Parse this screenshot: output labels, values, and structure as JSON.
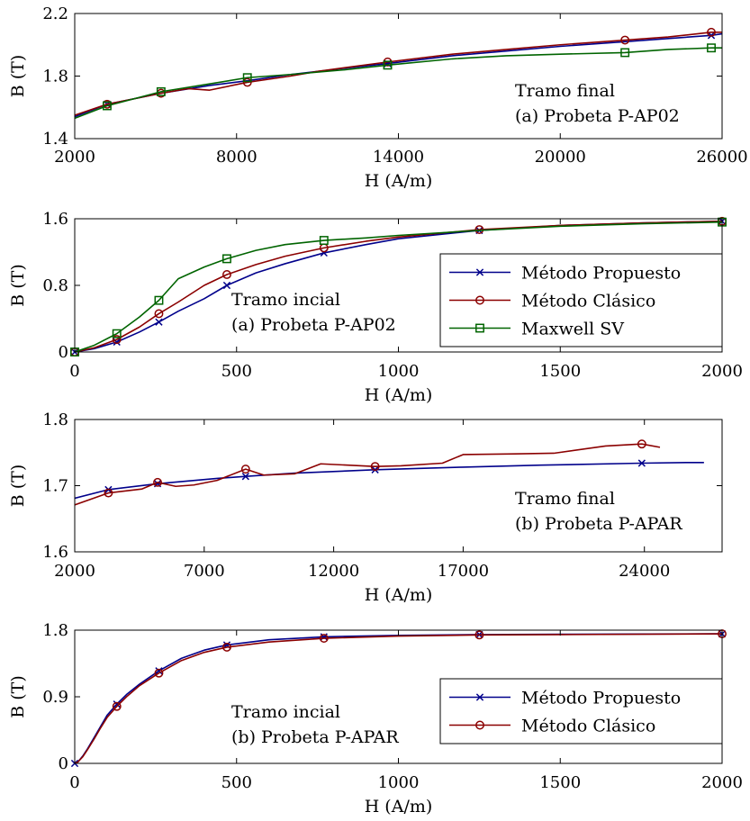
{
  "colors": {
    "propuesto": "#00008b",
    "clasico": "#8b0000",
    "maxwell": "#006400",
    "axis": "#000000"
  },
  "chart_data": [
    {
      "type": "line",
      "xlabel": "H (A/m)",
      "ylabel": "B (T)",
      "xlim": [
        2000,
        26000
      ],
      "ylim": [
        1.4,
        2.2
      ],
      "xticks": [
        2000,
        8000,
        14000,
        20000,
        26000
      ],
      "yticks": [
        1.4,
        1.8,
        2.2
      ],
      "ytick_labels": [
        "1.4",
        "1.8",
        "2.2"
      ],
      "annotation": [
        "Tramo final",
        "(a) Probeta P-AP02"
      ],
      "annotation_position": "middle-right",
      "legend": null,
      "series": [
        {
          "key": "propuesto",
          "marker": "x",
          "x": [
            2000,
            3200,
            5200,
            7000,
            8400,
            10000,
            12000,
            13600,
            16000,
            18000,
            20000,
            22400,
            24000,
            25600,
            26000
          ],
          "y": [
            1.54,
            1.62,
            1.69,
            1.74,
            1.77,
            1.81,
            1.85,
            1.88,
            1.93,
            1.96,
            1.99,
            2.02,
            2.04,
            2.06,
            2.07
          ],
          "markers_x": [
            3200,
            13600,
            25600
          ]
        },
        {
          "key": "clasico",
          "marker": "o",
          "x": [
            2000,
            3200,
            5200,
            6200,
            7000,
            8400,
            10000,
            11000,
            13600,
            16000,
            18000,
            20000,
            22400,
            24000,
            25600,
            26000
          ],
          "y": [
            1.55,
            1.62,
            1.69,
            1.72,
            1.71,
            1.76,
            1.8,
            1.83,
            1.89,
            1.94,
            1.97,
            2.0,
            2.03,
            2.05,
            2.08,
            2.08
          ],
          "markers_x": [
            3200,
            5200,
            8400,
            13600,
            22400,
            25600
          ]
        },
        {
          "key": "maxwell",
          "marker": "s",
          "x": [
            2000,
            3200,
            5200,
            7000,
            8400,
            10000,
            12000,
            13600,
            16000,
            18000,
            20000,
            22400,
            24000,
            25600,
            26000
          ],
          "y": [
            1.53,
            1.61,
            1.7,
            1.75,
            1.79,
            1.81,
            1.84,
            1.87,
            1.91,
            1.93,
            1.94,
            1.95,
            1.97,
            1.98,
            1.98
          ],
          "markers_x": [
            3200,
            5200,
            8400,
            13600,
            22400,
            25600
          ]
        }
      ]
    },
    {
      "type": "line",
      "xlabel": "H (A/m)",
      "ylabel": "B (T)",
      "xlim": [
        0,
        2000
      ],
      "ylim": [
        0,
        1.6
      ],
      "xticks": [
        0,
        500,
        1000,
        1500,
        2000
      ],
      "yticks": [
        0,
        0.8,
        1.6
      ],
      "ytick_labels": [
        "0",
        "0.8",
        "1.6"
      ],
      "annotation": [
        "Tramo incial",
        "(a) Probeta P-AP02"
      ],
      "annotation_position": "middle",
      "legend": {
        "position": "bottom-right",
        "entries": [
          {
            "key": "propuesto",
            "label": "Método Propuesto"
          },
          {
            "key": "clasico",
            "label": "Método Clásico"
          },
          {
            "key": "maxwell",
            "label": "Maxwell SV"
          }
        ]
      },
      "series": [
        {
          "key": "propuesto",
          "marker": "x",
          "x": [
            0,
            60,
            130,
            200,
            260,
            320,
            400,
            470,
            560,
            650,
            770,
            900,
            1000,
            1250,
            1500,
            1750,
            2000
          ],
          "y": [
            0,
            0.04,
            0.12,
            0.24,
            0.36,
            0.49,
            0.64,
            0.8,
            0.95,
            1.06,
            1.19,
            1.29,
            1.36,
            1.46,
            1.52,
            1.55,
            1.57
          ],
          "markers_x": [
            0,
            130,
            260,
            470,
            770,
            1250,
            2000
          ]
        },
        {
          "key": "clasico",
          "marker": "o",
          "x": [
            0,
            60,
            130,
            200,
            260,
            320,
            400,
            470,
            560,
            650,
            770,
            900,
            1000,
            1250,
            1500,
            1750,
            2000
          ],
          "y": [
            0,
            0.05,
            0.15,
            0.3,
            0.46,
            0.6,
            0.8,
            0.93,
            1.05,
            1.15,
            1.25,
            1.33,
            1.38,
            1.47,
            1.52,
            1.55,
            1.57
          ],
          "markers_x": [
            0,
            130,
            260,
            470,
            770,
            1250,
            2000
          ]
        },
        {
          "key": "maxwell",
          "marker": "s",
          "x": [
            0,
            60,
            130,
            200,
            260,
            320,
            400,
            470,
            560,
            650,
            770,
            900,
            1000,
            1250,
            1500,
            1750,
            2000
          ],
          "y": [
            0,
            0.08,
            0.22,
            0.42,
            0.62,
            0.88,
            1.02,
            1.12,
            1.22,
            1.29,
            1.34,
            1.37,
            1.4,
            1.46,
            1.51,
            1.54,
            1.56
          ],
          "markers_x": [
            0,
            130,
            260,
            470,
            770,
            2000
          ]
        }
      ]
    },
    {
      "type": "line",
      "xlabel": "H (A/m)",
      "ylabel": "B (T)",
      "xlim": [
        2000,
        27000
      ],
      "ylim": [
        1.6,
        1.8
      ],
      "xticks": [
        2000,
        7000,
        12000,
        17000,
        24000
      ],
      "yticks": [
        1.6,
        1.7,
        1.8
      ],
      "ytick_labels": [
        "1.6",
        "1.7",
        "1.8"
      ],
      "annotation": [
        "Tramo final",
        "(b) Probeta P-APAR"
      ],
      "annotation_position": "middle-right",
      "legend": null,
      "series": [
        {
          "key": "propuesto",
          "marker": "x",
          "x": [
            2000,
            3300,
            5200,
            7500,
            8600,
            10500,
            13600,
            17000,
            20000,
            23900,
            25600,
            26300
          ],
          "y": [
            1.681,
            1.694,
            1.703,
            1.711,
            1.714,
            1.719,
            1.724,
            1.728,
            1.731,
            1.734,
            1.735,
            1.735
          ],
          "markers_x": [
            3300,
            5200,
            8600,
            13600,
            23900
          ]
        },
        {
          "key": "clasico",
          "marker": "o",
          "x": [
            2000,
            3300,
            4600,
            5200,
            5900,
            6600,
            7500,
            8600,
            9300,
            10500,
            11500,
            13600,
            14600,
            16200,
            17000,
            19000,
            20500,
            22500,
            23900,
            24600
          ],
          "y": [
            1.671,
            1.689,
            1.695,
            1.705,
            1.699,
            1.701,
            1.708,
            1.725,
            1.716,
            1.718,
            1.733,
            1.729,
            1.73,
            1.734,
            1.747,
            1.748,
            1.749,
            1.76,
            1.763,
            1.758
          ],
          "markers_x": [
            3300,
            5200,
            8600,
            13600,
            23900
          ]
        }
      ]
    },
    {
      "type": "line",
      "xlabel": "H (A/m)",
      "ylabel": "B (T)",
      "xlim": [
        0,
        2000
      ],
      "ylim": [
        0,
        1.8
      ],
      "xticks": [
        0,
        500,
        1000,
        1500,
        2000
      ],
      "yticks": [
        0,
        0.9,
        1.8
      ],
      "ytick_labels": [
        "0",
        "0.9",
        "1.8"
      ],
      "annotation": [
        "Tramo incial",
        "(b) Probeta P-APAR"
      ],
      "annotation_position": "bottom-left",
      "legend": {
        "position": "bottom-right",
        "entries": [
          {
            "key": "propuesto",
            "label": "Método Propuesto"
          },
          {
            "key": "clasico",
            "label": "Método Clásico"
          }
        ]
      },
      "series": [
        {
          "key": "propuesto",
          "marker": "x",
          "x": [
            0,
            10,
            25,
            40,
            60,
            80,
            100,
            130,
            160,
            200,
            260,
            330,
            400,
            470,
            600,
            770,
            1000,
            1250,
            1500,
            2000
          ],
          "y": [
            0,
            0.02,
            0.1,
            0.2,
            0.35,
            0.5,
            0.65,
            0.8,
            0.93,
            1.07,
            1.25,
            1.42,
            1.53,
            1.6,
            1.67,
            1.71,
            1.73,
            1.74,
            1.745,
            1.75
          ],
          "markers_x": [
            0,
            130,
            260,
            470,
            770,
            1250,
            2000
          ]
        },
        {
          "key": "clasico",
          "marker": "o",
          "x": [
            0,
            10,
            25,
            40,
            60,
            80,
            100,
            130,
            160,
            200,
            260,
            330,
            400,
            470,
            600,
            770,
            1000,
            1250,
            1500,
            2000
          ],
          "y": [
            0,
            0.02,
            0.09,
            0.19,
            0.33,
            0.48,
            0.62,
            0.77,
            0.9,
            1.05,
            1.22,
            1.39,
            1.5,
            1.57,
            1.64,
            1.69,
            1.72,
            1.735,
            1.74,
            1.75
          ],
          "markers_x": [
            130,
            260,
            470,
            770,
            1250,
            2000
          ]
        }
      ]
    }
  ]
}
